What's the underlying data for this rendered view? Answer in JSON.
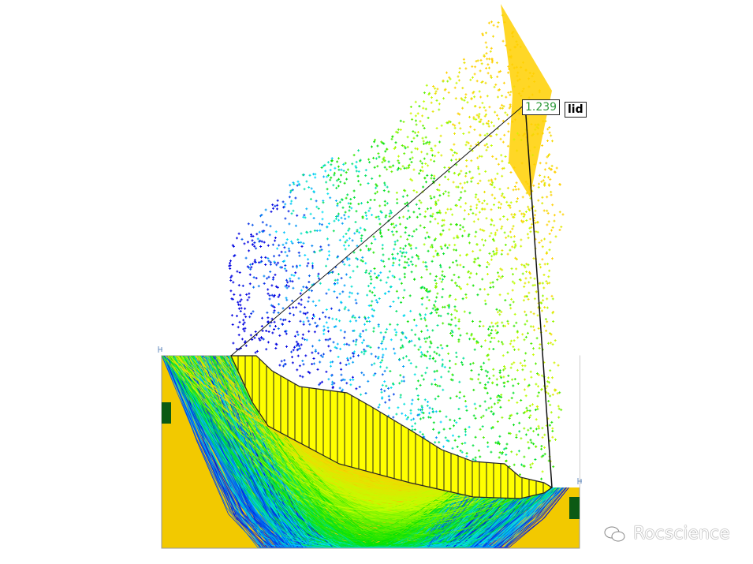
{
  "analysis": {
    "critical_factor_of_safety": "1.239",
    "method_label_partial": "lid"
  },
  "watermark": {
    "text": "Rocscience",
    "icon": "wechat-icon"
  },
  "colors": {
    "material_fill": "#f2c900",
    "material_band": "#0b5a14",
    "critical_surface_fill": "#ffff00",
    "fs_text": "#2e9a3a",
    "fs_scale": [
      "#0000e0",
      "#00e0ff",
      "#00e000",
      "#c0ff00",
      "#ffd000"
    ]
  }
}
